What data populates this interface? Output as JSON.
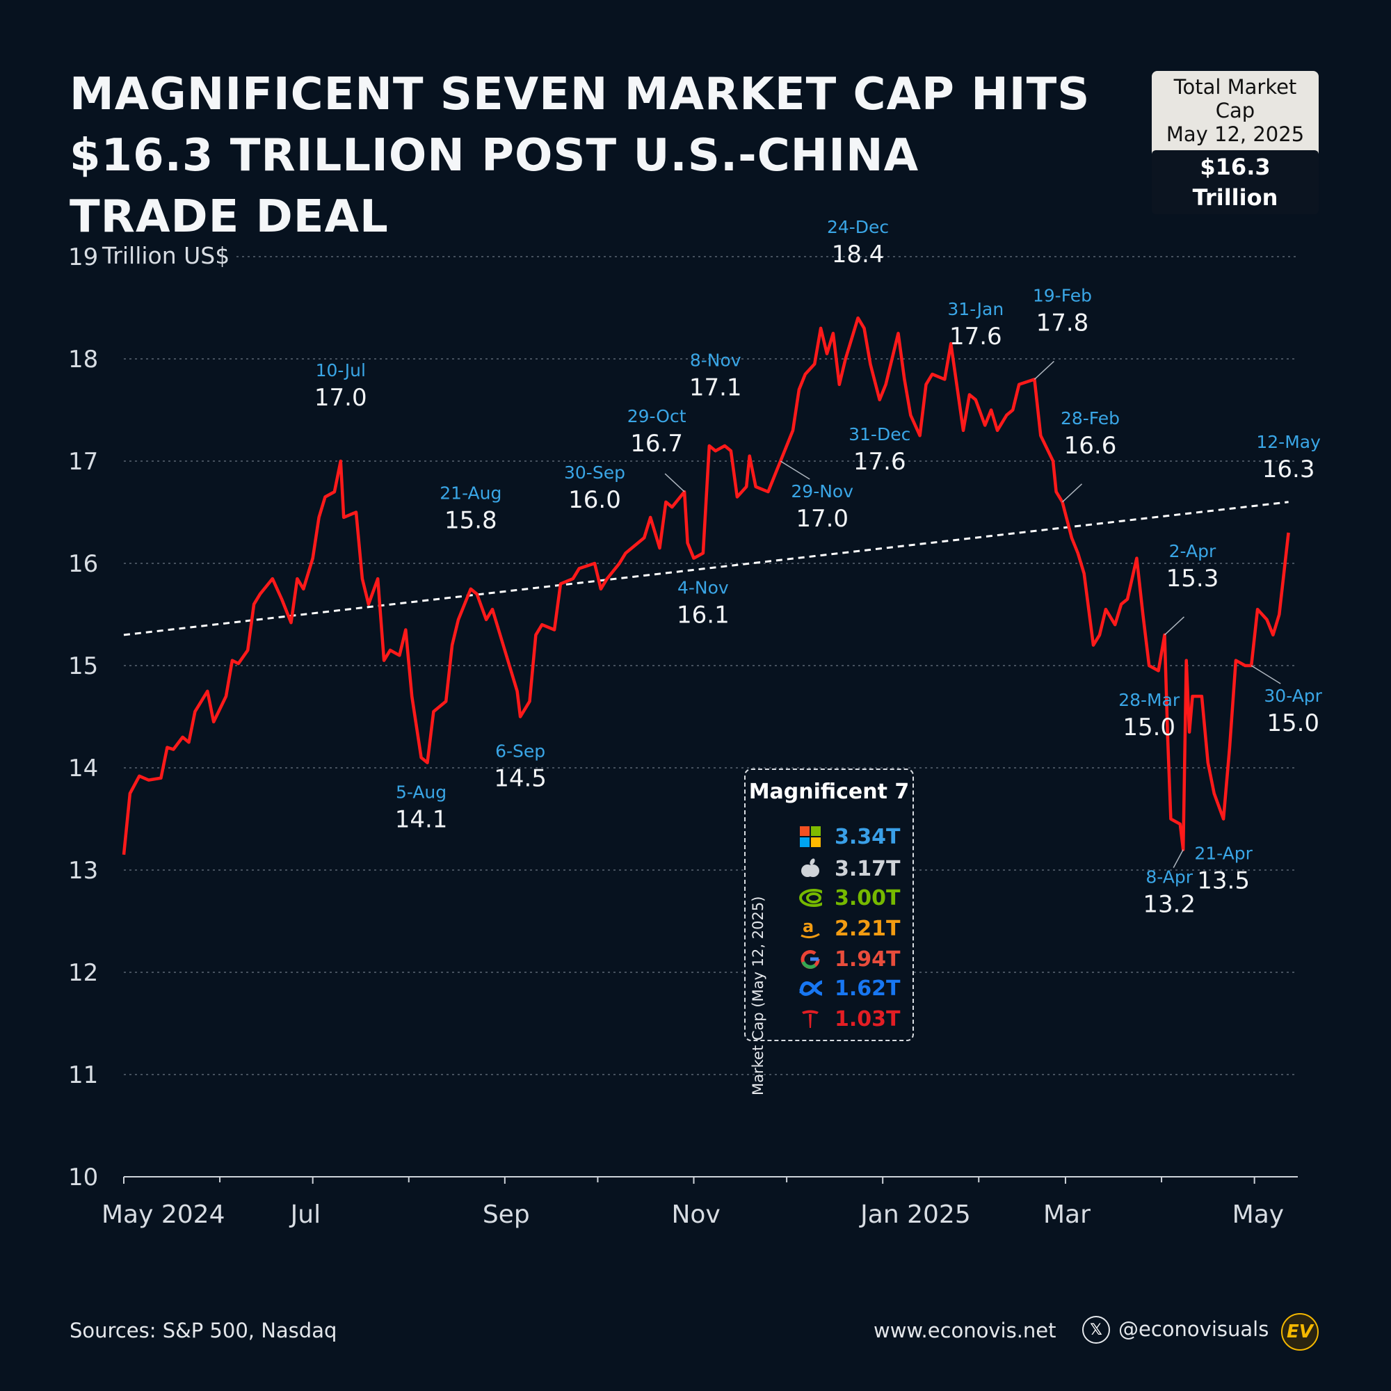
{
  "header": {
    "title_line1": "MAGNIFICENT SEVEN MARKET CAP HITS",
    "title_line2": "$16.3 TRILLION POST U.S.-CHINA TRADE DEAL"
  },
  "total_box": {
    "line1": "Total Market Cap",
    "line2": "May 12, 2025",
    "value": "$16.3 Trillion"
  },
  "chart_data": {
    "type": "line",
    "unit_label": "Trillion US$",
    "ylim": [
      10,
      19
    ],
    "yticks": [
      10,
      11,
      12,
      13,
      14,
      15,
      16,
      17,
      18,
      19
    ],
    "xlim": [
      "2024-05-01",
      "2025-05-15"
    ],
    "xticks": [
      {
        "date": "2024-05-01",
        "label": "May 2024"
      },
      {
        "date": "2024-07-01",
        "label": "Jul"
      },
      {
        "date": "2024-09-01",
        "label": "Sep"
      },
      {
        "date": "2024-11-01",
        "label": "Nov"
      },
      {
        "date": "2025-01-01",
        "label": "Jan 2025"
      },
      {
        "date": "2025-03-01",
        "label": "Mar"
      },
      {
        "date": "2025-05-01",
        "label": "May"
      }
    ],
    "minor_ticks": [
      "2024-06-01",
      "2024-08-01",
      "2024-10-01",
      "2024-12-01",
      "2025-02-01",
      "2025-04-01"
    ],
    "grid": "horizontal-dotted",
    "series": [
      {
        "color": "#ff1a1a",
        "points": [
          [
            "2024-05-01",
            13.15
          ],
          [
            "2024-05-03",
            13.75
          ],
          [
            "2024-05-06",
            13.92
          ],
          [
            "2024-05-09",
            13.88
          ],
          [
            "2024-05-13",
            13.9
          ],
          [
            "2024-05-15",
            14.2
          ],
          [
            "2024-05-17",
            14.18
          ],
          [
            "2024-05-20",
            14.3
          ],
          [
            "2024-05-22",
            14.25
          ],
          [
            "2024-05-24",
            14.55
          ],
          [
            "2024-05-28",
            14.75
          ],
          [
            "2024-05-30",
            14.45
          ],
          [
            "2024-06-03",
            14.7
          ],
          [
            "2024-06-05",
            15.05
          ],
          [
            "2024-06-07",
            15.02
          ],
          [
            "2024-06-10",
            15.15
          ],
          [
            "2024-06-12",
            15.6
          ],
          [
            "2024-06-14",
            15.7
          ],
          [
            "2024-06-18",
            15.85
          ],
          [
            "2024-06-21",
            15.65
          ],
          [
            "2024-06-24",
            15.42
          ],
          [
            "2024-06-26",
            15.85
          ],
          [
            "2024-06-28",
            15.75
          ],
          [
            "2024-07-01",
            16.05
          ],
          [
            "2024-07-03",
            16.45
          ],
          [
            "2024-07-05",
            16.65
          ],
          [
            "2024-07-08",
            16.7
          ],
          [
            "2024-07-10",
            17.0
          ],
          [
            "2024-07-11",
            16.45
          ],
          [
            "2024-07-15",
            16.5
          ],
          [
            "2024-07-17",
            15.85
          ],
          [
            "2024-07-19",
            15.6
          ],
          [
            "2024-07-22",
            15.85
          ],
          [
            "2024-07-24",
            15.05
          ],
          [
            "2024-07-26",
            15.15
          ],
          [
            "2024-07-29",
            15.1
          ],
          [
            "2024-07-31",
            15.35
          ],
          [
            "2024-08-02",
            14.7
          ],
          [
            "2024-08-05",
            14.1
          ],
          [
            "2024-08-07",
            14.05
          ],
          [
            "2024-08-09",
            14.55
          ],
          [
            "2024-08-13",
            14.65
          ],
          [
            "2024-08-15",
            15.2
          ],
          [
            "2024-08-17",
            15.45
          ],
          [
            "2024-08-21",
            15.75
          ],
          [
            "2024-08-23",
            15.7
          ],
          [
            "2024-08-26",
            15.45
          ],
          [
            "2024-08-28",
            15.55
          ],
          [
            "2024-08-30",
            15.35
          ],
          [
            "2024-09-03",
            14.95
          ],
          [
            "2024-09-05",
            14.75
          ],
          [
            "2024-09-06",
            14.5
          ],
          [
            "2024-09-09",
            14.65
          ],
          [
            "2024-09-11",
            15.3
          ],
          [
            "2024-09-13",
            15.4
          ],
          [
            "2024-09-17",
            15.35
          ],
          [
            "2024-09-19",
            15.8
          ],
          [
            "2024-09-23",
            15.85
          ],
          [
            "2024-09-25",
            15.95
          ],
          [
            "2024-09-30",
            16.0
          ],
          [
            "2024-10-02",
            15.75
          ],
          [
            "2024-10-04",
            15.85
          ],
          [
            "2024-10-08",
            16.0
          ],
          [
            "2024-10-10",
            16.1
          ],
          [
            "2024-10-14",
            16.2
          ],
          [
            "2024-10-16",
            16.25
          ],
          [
            "2024-10-18",
            16.45
          ],
          [
            "2024-10-21",
            16.15
          ],
          [
            "2024-10-23",
            16.6
          ],
          [
            "2024-10-25",
            16.55
          ],
          [
            "2024-10-29",
            16.7
          ],
          [
            "2024-10-30",
            16.2
          ],
          [
            "2024-11-01",
            16.05
          ],
          [
            "2024-11-04",
            16.1
          ],
          [
            "2024-11-06",
            17.15
          ],
          [
            "2024-11-08",
            17.1
          ],
          [
            "2024-11-11",
            17.15
          ],
          [
            "2024-11-13",
            17.1
          ],
          [
            "2024-11-15",
            16.65
          ],
          [
            "2024-11-18",
            16.75
          ],
          [
            "2024-11-19",
            17.05
          ],
          [
            "2024-11-21",
            16.75
          ],
          [
            "2024-11-25",
            16.7
          ],
          [
            "2024-11-27",
            16.85
          ],
          [
            "2024-11-29",
            17.0
          ],
          [
            "2024-12-03",
            17.3
          ],
          [
            "2024-12-05",
            17.7
          ],
          [
            "2024-12-07",
            17.85
          ],
          [
            "2024-12-10",
            17.95
          ],
          [
            "2024-12-12",
            18.3
          ],
          [
            "2024-12-14",
            18.05
          ],
          [
            "2024-12-16",
            18.25
          ],
          [
            "2024-12-18",
            17.75
          ],
          [
            "2024-12-20",
            18.0
          ],
          [
            "2024-12-24",
            18.4
          ],
          [
            "2024-12-26",
            18.3
          ],
          [
            "2024-12-28",
            17.95
          ],
          [
            "2024-12-31",
            17.6
          ],
          [
            "2025-01-02",
            17.75
          ],
          [
            "2025-01-06",
            18.25
          ],
          [
            "2025-01-08",
            17.8
          ],
          [
            "2025-01-10",
            17.45
          ],
          [
            "2025-01-13",
            17.25
          ],
          [
            "2025-01-15",
            17.75
          ],
          [
            "2025-01-17",
            17.85
          ],
          [
            "2025-01-21",
            17.8
          ],
          [
            "2025-01-23",
            18.15
          ],
          [
            "2025-01-27",
            17.3
          ],
          [
            "2025-01-29",
            17.65
          ],
          [
            "2025-01-31",
            17.6
          ],
          [
            "2025-02-03",
            17.35
          ],
          [
            "2025-02-05",
            17.5
          ],
          [
            "2025-02-07",
            17.3
          ],
          [
            "2025-02-10",
            17.45
          ],
          [
            "2025-02-12",
            17.5
          ],
          [
            "2025-02-14",
            17.75
          ],
          [
            "2025-02-19",
            17.8
          ],
          [
            "2025-02-21",
            17.25
          ],
          [
            "2025-02-25",
            17.0
          ],
          [
            "2025-02-26",
            16.7
          ],
          [
            "2025-02-28",
            16.6
          ],
          [
            "2025-03-03",
            16.25
          ],
          [
            "2025-03-05",
            16.1
          ],
          [
            "2025-03-07",
            15.9
          ],
          [
            "2025-03-10",
            15.2
          ],
          [
            "2025-03-12",
            15.3
          ],
          [
            "2025-03-14",
            15.55
          ],
          [
            "2025-03-17",
            15.4
          ],
          [
            "2025-03-19",
            15.6
          ],
          [
            "2025-03-21",
            15.65
          ],
          [
            "2025-03-24",
            16.05
          ],
          [
            "2025-03-26",
            15.5
          ],
          [
            "2025-03-28",
            15.0
          ],
          [
            "2025-03-31",
            14.95
          ],
          [
            "2025-04-02",
            15.3
          ],
          [
            "2025-04-03",
            14.3
          ],
          [
            "2025-04-04",
            13.5
          ],
          [
            "2025-04-07",
            13.45
          ],
          [
            "2025-04-08",
            13.2
          ],
          [
            "2025-04-09",
            15.05
          ],
          [
            "2025-04-10",
            14.35
          ],
          [
            "2025-04-11",
            14.7
          ],
          [
            "2025-04-14",
            14.7
          ],
          [
            "2025-04-16",
            14.05
          ],
          [
            "2025-04-18",
            13.75
          ],
          [
            "2025-04-21",
            13.5
          ],
          [
            "2025-04-23",
            14.2
          ],
          [
            "2025-04-25",
            15.05
          ],
          [
            "2025-04-28",
            15.0
          ],
          [
            "2025-04-30",
            15.0
          ],
          [
            "2025-05-02",
            15.55
          ],
          [
            "2025-05-05",
            15.45
          ],
          [
            "2025-05-07",
            15.3
          ],
          [
            "2025-05-09",
            15.5
          ],
          [
            "2025-05-12",
            16.3
          ]
        ]
      }
    ],
    "trendline": {
      "start": [
        "2024-05-01",
        15.3
      ],
      "end": [
        "2025-05-12",
        16.6
      ],
      "style": "dashed",
      "color": "#ffffff"
    },
    "annotations": [
      {
        "date": "2024-07-10",
        "value": 17.0,
        "date_label": "10-Jul",
        "value_label": "17.0",
        "pos": "above"
      },
      {
        "date": "2024-08-05",
        "value": 14.1,
        "date_label": "5-Aug",
        "value_label": "14.1",
        "pos": "below"
      },
      {
        "date": "2024-08-21",
        "value": 15.8,
        "date_label": "21-Aug",
        "value_label": "15.8",
        "pos": "above"
      },
      {
        "date": "2024-09-06",
        "value": 14.5,
        "date_label": "6-Sep",
        "value_label": "14.5",
        "pos": "below"
      },
      {
        "date": "2024-09-30",
        "value": 16.0,
        "date_label": "30-Sep",
        "value_label": "16.0",
        "pos": "above"
      },
      {
        "date": "2024-10-29",
        "value": 16.7,
        "date_label": "29-Oct",
        "value_label": "16.7",
        "pos": "above-left"
      },
      {
        "date": "2024-11-04",
        "value": 16.1,
        "date_label": "4-Nov",
        "value_label": "16.1",
        "pos": "below"
      },
      {
        "date": "2024-11-08",
        "value": 17.1,
        "date_label": "8-Nov",
        "value_label": "17.1",
        "pos": "above"
      },
      {
        "date": "2024-11-29",
        "value": 17.0,
        "date_label": "29-Nov",
        "value_label": "17.0",
        "pos": "below-right"
      },
      {
        "date": "2024-12-24",
        "value": 18.4,
        "date_label": "24-Dec",
        "value_label": "18.4",
        "pos": "above"
      },
      {
        "date": "2024-12-31",
        "value": 17.6,
        "date_label": "31-Dec",
        "value_label": "17.6",
        "pos": "below"
      },
      {
        "date": "2025-01-31",
        "value": 17.6,
        "date_label": "31-Jan",
        "value_label": "17.6",
        "pos": "above"
      },
      {
        "date": "2025-02-19",
        "value": 17.8,
        "date_label": "19-Feb",
        "value_label": "17.8",
        "pos": "above-right"
      },
      {
        "date": "2025-02-28",
        "value": 16.6,
        "date_label": "28-Feb",
        "value_label": "16.6",
        "pos": "above-right"
      },
      {
        "date": "2025-03-28",
        "value": 15.0,
        "date_label": "28-Mar",
        "value_label": "15.0",
        "pos": "below"
      },
      {
        "date": "2025-04-02",
        "value": 15.3,
        "date_label": "2-Apr",
        "value_label": "15.3",
        "pos": "above-right"
      },
      {
        "date": "2025-04-08",
        "value": 13.2,
        "date_label": "8-Apr",
        "value_label": "13.2",
        "pos": "below-left"
      },
      {
        "date": "2025-04-21",
        "value": 13.5,
        "date_label": "21-Apr",
        "value_label": "13.5",
        "pos": "below"
      },
      {
        "date": "2025-04-30",
        "value": 15.0,
        "date_label": "30-Apr",
        "value_label": "15.0",
        "pos": "below-right"
      },
      {
        "date": "2025-05-12",
        "value": 16.3,
        "date_label": "12-May",
        "value_label": "16.3",
        "pos": "above"
      }
    ]
  },
  "legend": {
    "title": "Magnificent 7",
    "side_label": "Market Cap (May 12, 2025)",
    "items": [
      {
        "icon": "microsoft-icon",
        "value": "3.34T",
        "color": "#3aa0e8"
      },
      {
        "icon": "apple-icon",
        "value": "3.17T",
        "color": "#cfd3d8"
      },
      {
        "icon": "nvidia-icon",
        "value": "3.00T",
        "color": "#76b900"
      },
      {
        "icon": "amazon-icon",
        "value": "2.21T",
        "color": "#f39c12"
      },
      {
        "icon": "google-icon",
        "value": "1.94T",
        "color": "#e94d3c"
      },
      {
        "icon": "meta-icon",
        "value": "1.62T",
        "color": "#1877f2"
      },
      {
        "icon": "tesla-icon",
        "value": "1.03T",
        "color": "#e31e24"
      }
    ]
  },
  "footer": {
    "sources": "Sources: S&P 500, Nasdaq",
    "website": "www.econovis.net",
    "handle": "@econovisuals",
    "x_glyph": "𝕏",
    "logo_text": "EV"
  }
}
